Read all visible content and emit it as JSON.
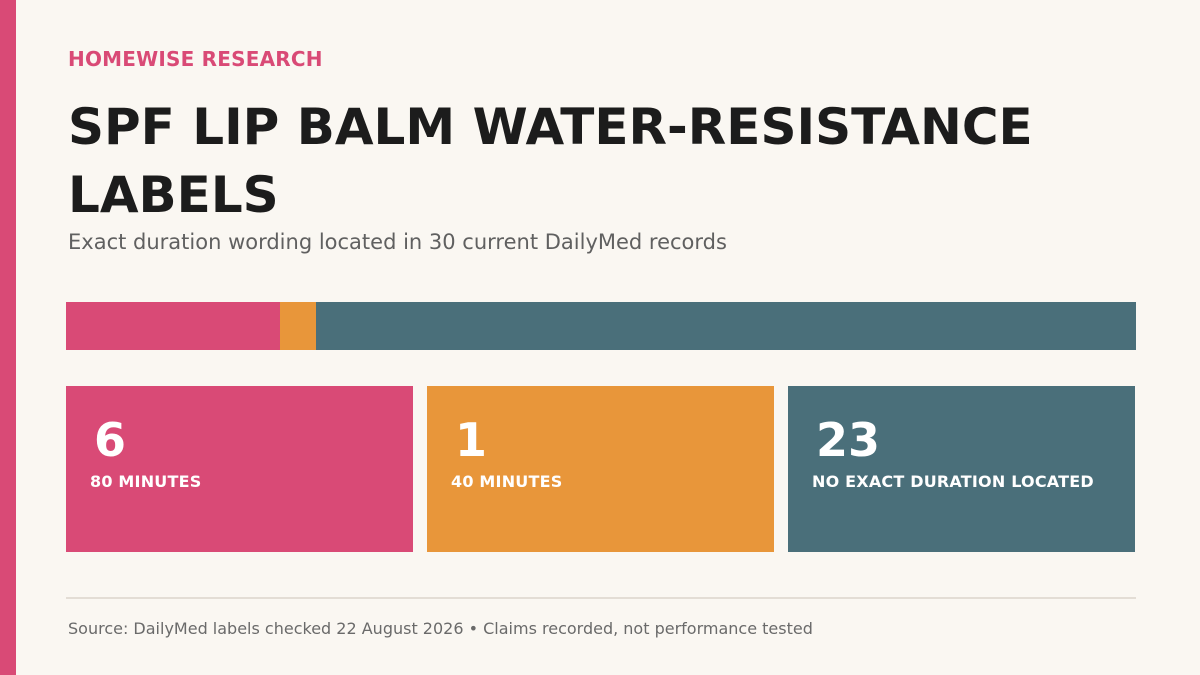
{
  "header": {
    "brand": "HOMEWISE RESEARCH",
    "title": "SPF LIP BALM WATER-RESISTANCE LABELS",
    "subtitle": "Exact duration wording located in 30 current DailyMed records"
  },
  "colors": {
    "accent": "#d94a76",
    "orange": "#e8963a",
    "teal": "#4a6f7a"
  },
  "chart_data": {
    "type": "bar",
    "orientation": "horizontal-stacked",
    "total": 30,
    "categories": [
      "80 MINUTES",
      "40 MINUTES",
      "NO EXACT DURATION LOCATED"
    ],
    "values": [
      6,
      1,
      23
    ],
    "series_colors": [
      "#d94a76",
      "#e8963a",
      "#4a6f7a"
    ]
  },
  "cards": [
    {
      "value": "6",
      "label": "80 MINUTES"
    },
    {
      "value": "1",
      "label": "40 MINUTES"
    },
    {
      "value": "23",
      "label": "NO EXACT DURATION LOCATED"
    }
  ],
  "footer": {
    "source": "Source: DailyMed labels checked 22 August 2026 • Claims recorded, not performance tested"
  }
}
